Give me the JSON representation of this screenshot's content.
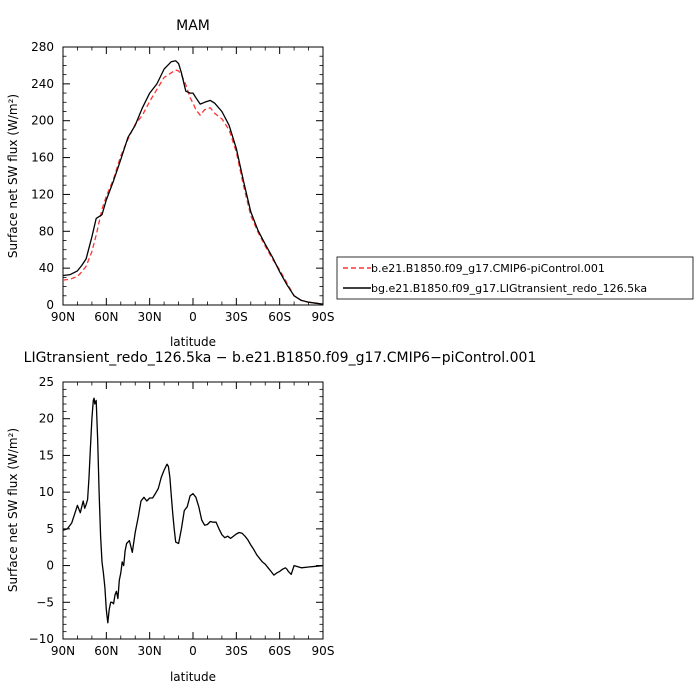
{
  "chart_data": [
    {
      "type": "line",
      "title": "MAM",
      "xlabel": "latitude",
      "ylabel": "Surface net SW flux (W/m²)",
      "x_ticks": [
        "90N",
        "60N",
        "30N",
        "0",
        "30S",
        "60S",
        "90S"
      ],
      "xlim": [
        90,
        -90
      ],
      "ylim": [
        0,
        280
      ],
      "y_ticks": [
        "0",
        "40",
        "80",
        "120",
        "160",
        "200",
        "240",
        "280"
      ],
      "legend_position": "right",
      "colors": {
        "dashed": "#ff3333",
        "solid": "#000000"
      },
      "series": [
        {
          "name": "b.e21.B1850.f09_g17.CMIP6-piControl.001",
          "style": "dashed",
          "x": [
            90,
            85,
            80,
            77,
            74,
            70,
            67,
            63,
            60,
            55,
            50,
            45,
            40,
            35,
            30,
            25,
            20,
            15,
            12,
            10,
            8,
            5,
            2,
            0,
            -2,
            -5,
            -8,
            -12,
            -15,
            -20,
            -25,
            -30,
            -35,
            -40,
            -45,
            -50,
            -55,
            -60,
            -65,
            -70,
            -75,
            -80,
            -85,
            -90
          ],
          "y": [
            27,
            28,
            31,
            36,
            42,
            58,
            76,
            104,
            118,
            137,
            162,
            180,
            196,
            206,
            221,
            234,
            247,
            252,
            255,
            254,
            250,
            239,
            225,
            219,
            212,
            206,
            212,
            214,
            208,
            202,
            190,
            166,
            129,
            97,
            79,
            64,
            50,
            38,
            24,
            10,
            5,
            3,
            2,
            1
          ]
        },
        {
          "name": "bg.e21.B1850.f09_g17.LIGtransient_redo_126.5ka",
          "style": "solid",
          "x": [
            90,
            85,
            80,
            77,
            74,
            70,
            67,
            63,
            60,
            55,
            50,
            45,
            40,
            35,
            30,
            25,
            20,
            15,
            12,
            10,
            8,
            5,
            2,
            0,
            -2,
            -5,
            -8,
            -12,
            -15,
            -20,
            -25,
            -30,
            -35,
            -40,
            -45,
            -50,
            -55,
            -60,
            -65,
            -70,
            -75,
            -80,
            -85,
            -90
          ],
          "y": [
            32,
            33,
            37,
            43,
            50,
            74,
            94,
            98,
            114,
            135,
            158,
            182,
            195,
            214,
            230,
            240,
            256,
            264,
            265,
            262,
            252,
            232,
            230,
            230,
            225,
            218,
            220,
            222,
            219,
            210,
            195,
            170,
            134,
            101,
            81,
            66,
            52,
            36,
            22,
            10,
            5,
            3,
            2,
            1
          ]
        }
      ]
    },
    {
      "type": "line",
      "title": "LIGtransient_redo_126.5ka − b.e21.B1850.f09_g17.CMIP6−piControl.001",
      "xlabel": "latitude",
      "ylabel": "Surface net SW flux (W/m²)",
      "x_ticks": [
        "90N",
        "60N",
        "30N",
        "0",
        "30S",
        "60S",
        "90S"
      ],
      "xlim": [
        90,
        -90
      ],
      "ylim": [
        -10,
        25
      ],
      "y_ticks": [
        "−10",
        "−5",
        "0",
        "5",
        "10",
        "15",
        "20",
        "25"
      ],
      "colors": {
        "solid": "#000000"
      },
      "series": [
        {
          "style": "solid",
          "x": [
            90,
            87,
            84,
            82,
            80,
            78,
            76,
            75,
            74,
            73,
            72,
            71,
            70,
            69,
            68.5,
            68,
            67,
            66,
            65,
            64,
            63,
            62,
            61,
            60,
            59,
            58,
            57,
            56,
            55,
            54,
            53,
            52,
            51,
            50,
            49,
            48,
            47,
            46,
            44,
            42,
            40,
            38,
            36,
            34,
            32,
            30,
            28,
            26,
            24,
            22,
            20,
            18,
            17,
            16,
            15,
            14,
            13,
            12,
            10,
            8,
            6,
            4,
            2,
            0,
            -2,
            -4,
            -6,
            -8,
            -10,
            -12,
            -14,
            -16,
            -18,
            -20,
            -22,
            -24,
            -26,
            -28,
            -30,
            -32,
            -34,
            -36,
            -38,
            -40,
            -42,
            -44,
            -46,
            -48,
            -50,
            -52,
            -54,
            -56,
            -58,
            -60,
            -62,
            -64,
            -65,
            -66,
            -67,
            -68,
            -70,
            -75,
            -80,
            -85,
            -90
          ],
          "y": [
            4.8,
            5.0,
            5.8,
            7.0,
            8.2,
            7.2,
            8.8,
            7.8,
            8.3,
            9.0,
            12.0,
            16.0,
            20.0,
            22.5,
            22.8,
            22.0,
            22.5,
            17.0,
            10.0,
            4.0,
            0.5,
            -1.0,
            -3.0,
            -6.0,
            -7.8,
            -6.0,
            -5.0,
            -5.0,
            -5.2,
            -4.0,
            -3.5,
            -4.5,
            -2.0,
            -1.0,
            0.5,
            0.0,
            2.0,
            3.0,
            3.4,
            1.8,
            4.5,
            6.5,
            8.8,
            9.3,
            8.8,
            9.2,
            9.2,
            9.8,
            10.5,
            12.0,
            13.0,
            13.8,
            13.5,
            12.0,
            9.5,
            7.0,
            5.0,
            3.2,
            3.0,
            5.0,
            7.5,
            8.0,
            9.5,
            9.8,
            9.3,
            8.0,
            6.2,
            5.5,
            5.6,
            6.0,
            5.9,
            5.9,
            5.0,
            4.2,
            3.8,
            4.0,
            3.7,
            4.0,
            4.3,
            4.5,
            4.4,
            4.0,
            3.5,
            2.8,
            2.2,
            1.5,
            1.0,
            0.5,
            0.2,
            -0.3,
            -0.8,
            -1.3,
            -1.0,
            -0.8,
            -0.5,
            -0.3,
            -0.5,
            -0.8,
            -1.0,
            -1.2,
            0.0,
            -0.3,
            -0.2,
            -0.1,
            0.0
          ]
        }
      ]
    }
  ]
}
